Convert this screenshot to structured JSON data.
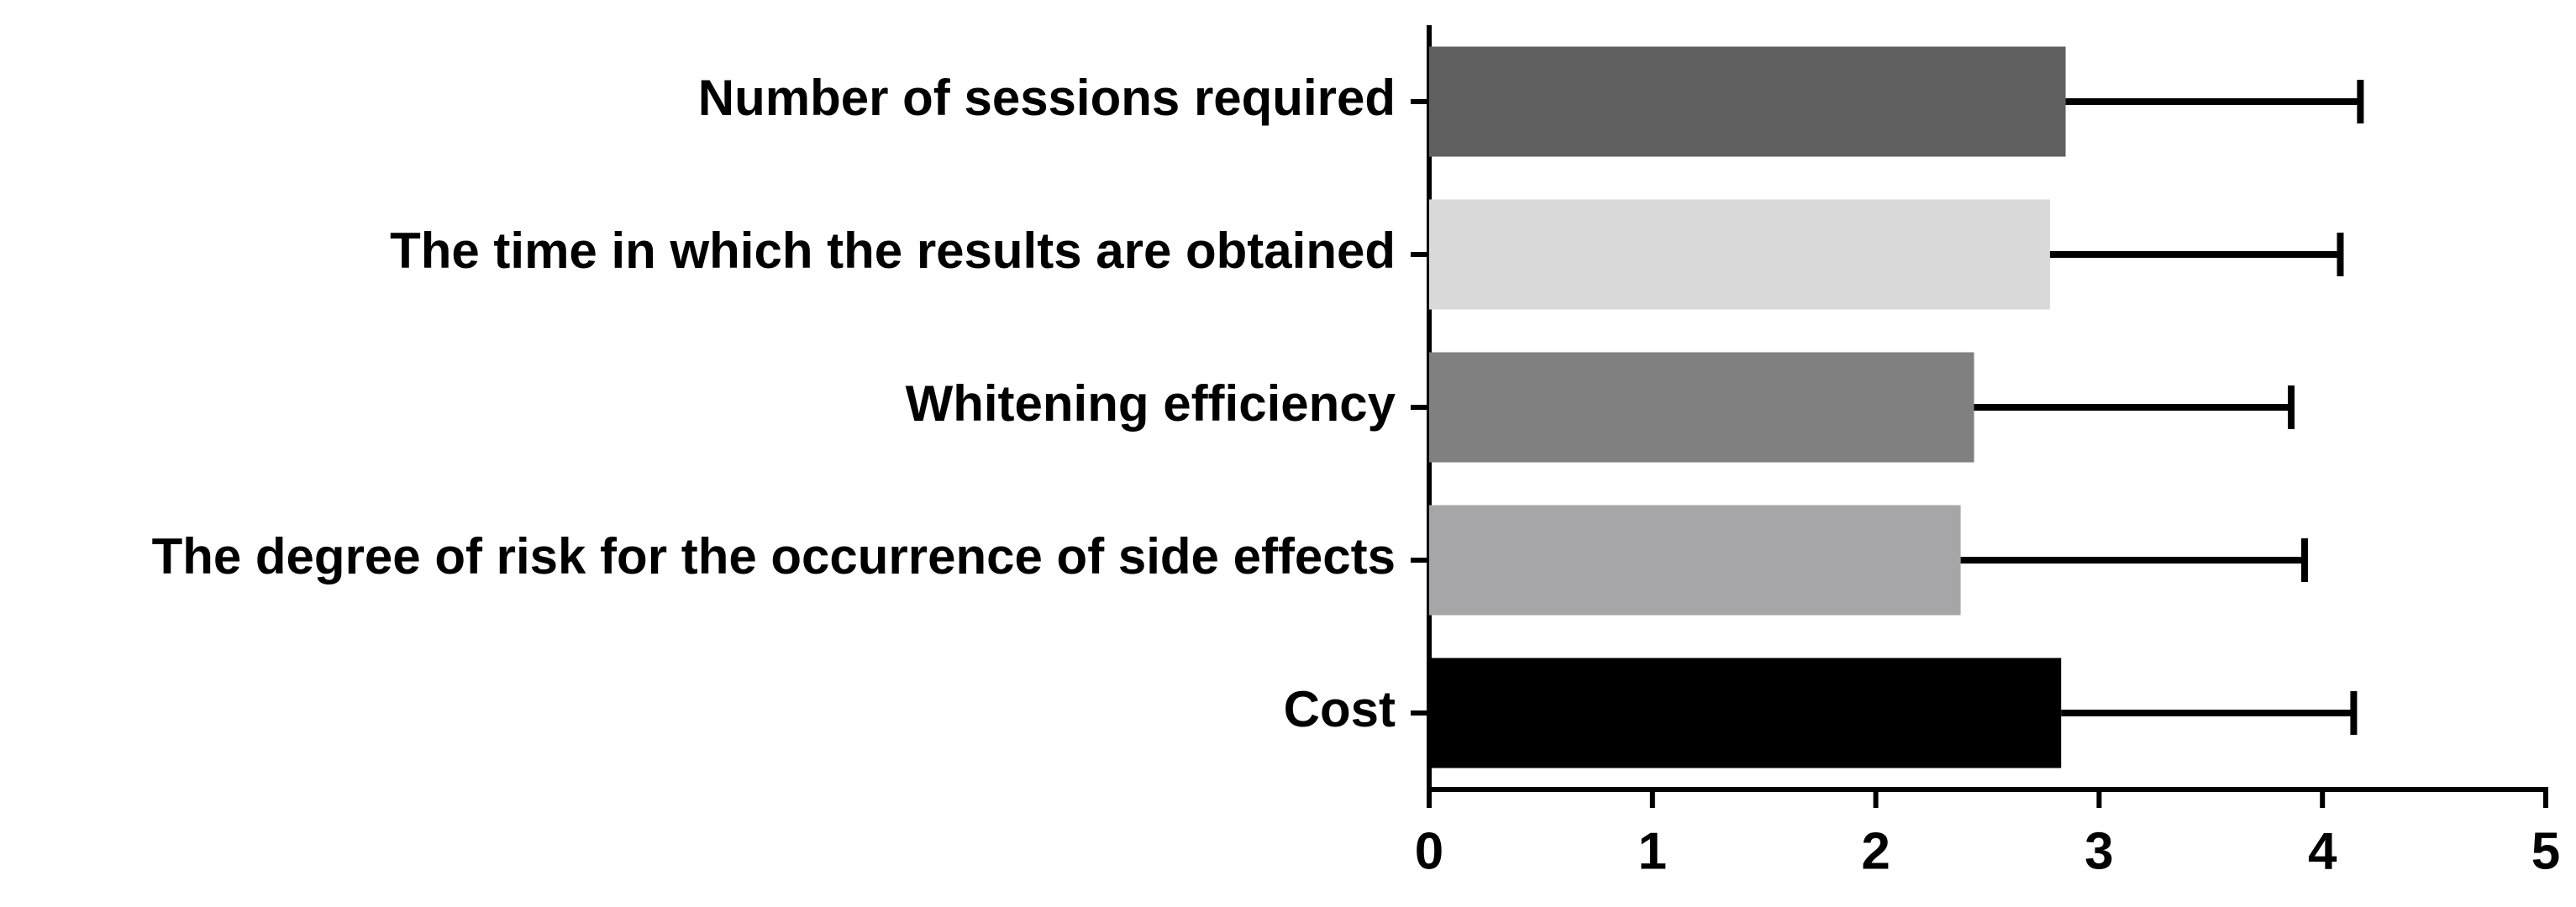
{
  "chart_data": {
    "type": "hbar",
    "categories": [
      "Number of sessions required",
      "The time in which the results are obtained",
      "Whitening efficiency",
      "The degree of risk for the occurrence of side effects",
      "Cost"
    ],
    "values": [
      2.85,
      2.78,
      2.44,
      2.38,
      2.83
    ],
    "errors": [
      1.32,
      1.3,
      1.42,
      1.54,
      1.31
    ],
    "colors": [
      "#606060",
      "#d9d9d9",
      "#808080",
      "#a6a6a8",
      "#000000"
    ],
    "xlim": [
      0,
      5
    ],
    "xticks": [
      0,
      1,
      2,
      3,
      4,
      5
    ]
  }
}
